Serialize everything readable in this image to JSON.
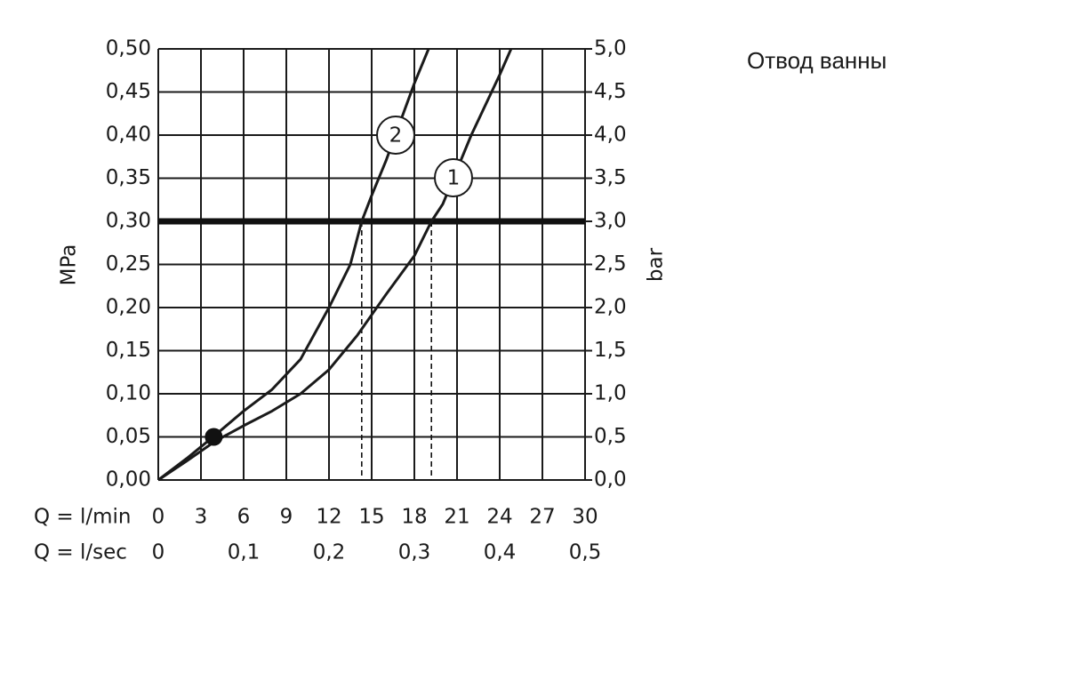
{
  "chart_data": {
    "type": "line",
    "title": "Отвод ванны",
    "ylabel": "MPa",
    "y2label": "bar",
    "xlabel": "Q = l/min",
    "x2label": "Q = l/sec",
    "xlim": [
      0,
      30
    ],
    "xticks": [
      0,
      3,
      6,
      9,
      12,
      15,
      18,
      21,
      24,
      27,
      30
    ],
    "x2lim": [
      0,
      0.5
    ],
    "x2ticks": [
      0,
      {
        "value": 0.1,
        "label": "0,1"
      },
      {
        "value": 0.2,
        "label": "0,2"
      },
      {
        "value": 0.3,
        "label": "0,3"
      },
      {
        "value": 0.4,
        "label": "0,4"
      },
      {
        "value": 0.5,
        "label": "0,5"
      }
    ],
    "ylim": [
      0,
      0.5
    ],
    "yticks": [
      {
        "value": 0,
        "label": "0,00"
      },
      {
        "value": 0.05,
        "label": "0,05"
      },
      {
        "value": 0.1,
        "label": "0,10"
      },
      {
        "value": 0.15,
        "label": "0,15"
      },
      {
        "value": 0.2,
        "label": "0,20"
      },
      {
        "value": 0.25,
        "label": "0,25"
      },
      {
        "value": 0.3,
        "label": "0,30"
      },
      {
        "value": 0.35,
        "label": "0,35"
      },
      {
        "value": 0.4,
        "label": "0,40"
      },
      {
        "value": 0.45,
        "label": "0,45"
      },
      {
        "value": 0.5,
        "label": "0,50"
      }
    ],
    "y2lim": [
      0,
      5
    ],
    "y2ticks": [
      {
        "value": 0,
        "label": "0,0"
      },
      {
        "value": 0.5,
        "label": "0,5"
      },
      {
        "value": 1,
        "label": "1,0"
      },
      {
        "value": 1.5,
        "label": "1,5"
      },
      {
        "value": 2,
        "label": "2,0"
      },
      {
        "value": 2.5,
        "label": "2,5"
      },
      {
        "value": 3,
        "label": "3,0"
      },
      {
        "value": 3.5,
        "label": "3,5"
      },
      {
        "value": 4,
        "label": "4,0"
      },
      {
        "value": 4.5,
        "label": "4,5"
      },
      {
        "value": 5,
        "label": "5,0"
      }
    ],
    "grid": true,
    "reference_line": 0.3,
    "dropdowns": [
      14.3,
      19.2
    ],
    "marker": {
      "x": 3.9,
      "y": 0.05
    },
    "series": [
      {
        "name": "1",
        "color": "#1a1a1a",
        "x": [
          0,
          2,
          4,
          6,
          8,
          10,
          12,
          14,
          16,
          18,
          19.2,
          20,
          22,
          24,
          24.8
        ],
        "values": [
          0,
          0.022,
          0.045,
          0.063,
          0.08,
          0.1,
          0.128,
          0.168,
          0.215,
          0.26,
          0.3,
          0.32,
          0.4,
          0.47,
          0.5
        ]
      },
      {
        "name": "2",
        "color": "#1a1a1a",
        "x": [
          0,
          2,
          4,
          6,
          8,
          10,
          12,
          13.5,
          14.3,
          15,
          16,
          17,
          18,
          19
        ],
        "values": [
          0,
          0.025,
          0.052,
          0.08,
          0.105,
          0.14,
          0.2,
          0.25,
          0.3,
          0.33,
          0.37,
          0.415,
          0.46,
          0.5
        ]
      }
    ]
  }
}
